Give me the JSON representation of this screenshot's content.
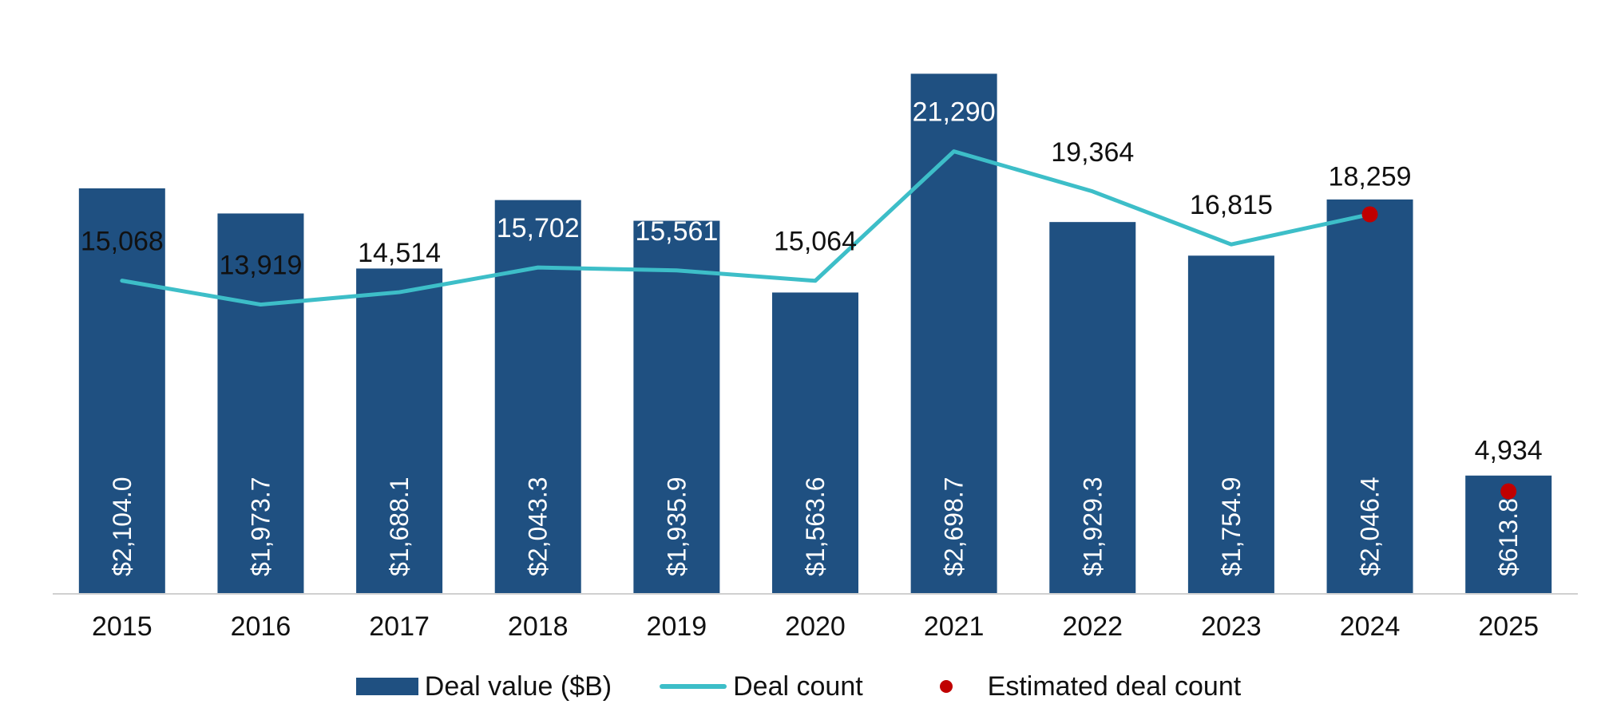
{
  "chart_data": {
    "type": "bar",
    "categories": [
      "2015",
      "2016",
      "2017",
      "2018",
      "2019",
      "2020",
      "2021",
      "2022",
      "2023",
      "2024",
      "2025"
    ],
    "series": [
      {
        "name": "Deal value ($B)",
        "type": "bar",
        "values": [
          2104.0,
          1973.7,
          1688.1,
          2043.3,
          1935.9,
          1563.6,
          2698.7,
          1929.3,
          1754.9,
          2046.4,
          613.8
        ],
        "labels": [
          "$2,104.0",
          "$1,973.7",
          "$1,688.1",
          "$2,043.3",
          "$1,935.9",
          "$1,563.6",
          "$2,698.7",
          "$1,929.3",
          "$1,754.9",
          "$2,046.4",
          "$613.8"
        ]
      },
      {
        "name": "Deal count",
        "type": "line",
        "values": [
          15068,
          13919,
          14514,
          15702,
          15561,
          15064,
          21290,
          19364,
          16815,
          18259,
          null
        ],
        "labels": [
          "15,068",
          "13,919",
          "14,514",
          "15,702",
          "15,561",
          "15,064",
          "21,290",
          "19,364",
          "16,815",
          "18,259",
          "4,934"
        ]
      },
      {
        "name": "Estimated deal count",
        "type": "scatter",
        "points": [
          {
            "x": "2024",
            "y": 18259
          },
          {
            "x": "2025",
            "y": 4934
          }
        ]
      }
    ],
    "title": "",
    "xlabel": "",
    "ylabel": "",
    "ylim_value": [
      0,
      2750
    ],
    "ylim_count": [
      0,
      25500
    ],
    "grid": false,
    "legend_position": "bottom-center",
    "colors": {
      "bar": "#1f5081",
      "line": "#3dbec8",
      "dot": "#c00000",
      "axis": "#d0d0d0",
      "count_label_inside": "#ffffff",
      "count_label_outside": "#111111"
    }
  },
  "legend": {
    "items": [
      {
        "label": "Deal value ($B)",
        "icon": "bar-swatch"
      },
      {
        "label": "Deal count",
        "icon": "line-swatch"
      },
      {
        "label": "Estimated deal count",
        "icon": "dot-swatch"
      }
    ]
  }
}
